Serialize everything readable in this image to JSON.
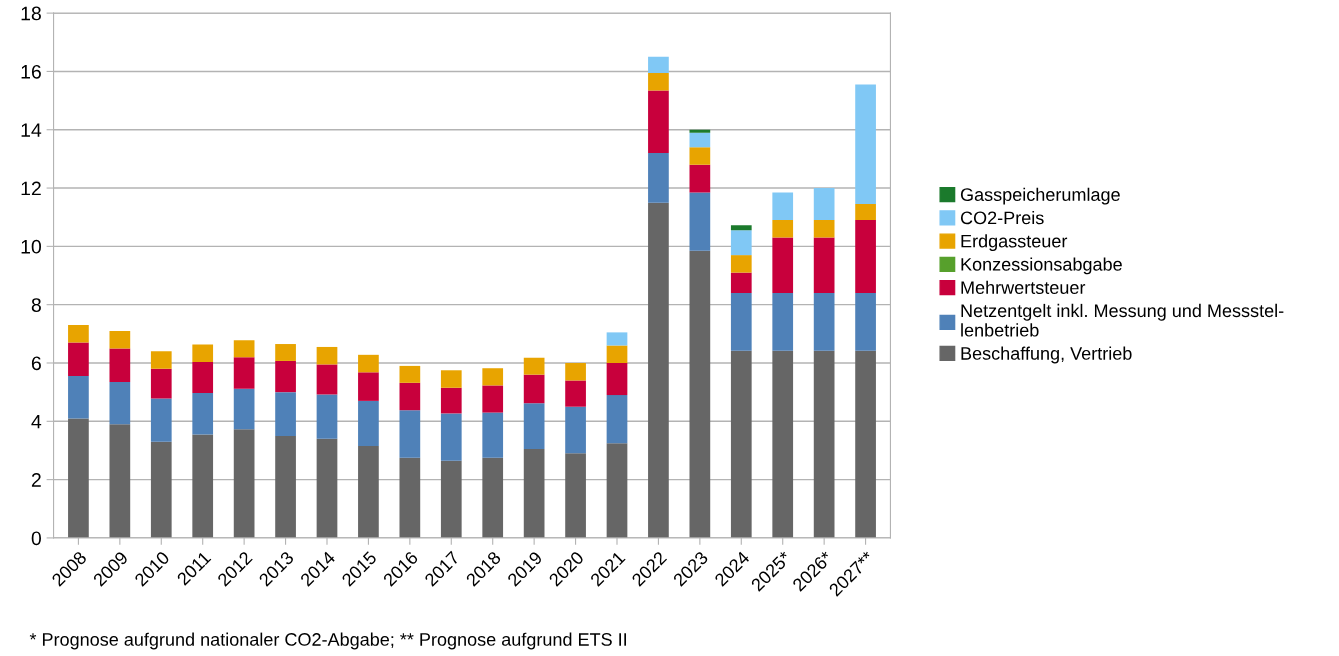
{
  "chart_data": {
    "type": "bar",
    "stacked": true,
    "categories": [
      "2008",
      "2009",
      "2010",
      "2011",
      "2012",
      "2013",
      "2014",
      "2015",
      "2016",
      "2017",
      "2018",
      "2019",
      "2020",
      "2021",
      "2022",
      "2023",
      "2024",
      "2025*",
      "2026*",
      "2027**"
    ],
    "series": [
      {
        "name": "Beschaffung, Vertrieb",
        "color": "#666666",
        "values": [
          4.1,
          3.9,
          3.3,
          3.55,
          3.73,
          3.5,
          3.4,
          3.15,
          2.75,
          2.65,
          2.75,
          3.05,
          2.9,
          3.25,
          11.5,
          9.85,
          6.42,
          6.42,
          6.42,
          6.42
        ]
      },
      {
        "name": "Netzentgelt inkl. Messung und Messstel-\nlenbetrieb",
        "color": "#4f81b8",
        "values": [
          1.45,
          1.45,
          1.48,
          1.42,
          1.39,
          1.5,
          1.52,
          1.55,
          1.63,
          1.62,
          1.55,
          1.57,
          1.6,
          1.65,
          1.7,
          2.0,
          1.98,
          1.98,
          1.98,
          1.98
        ]
      },
      {
        "name": "Mehrwertsteuer",
        "color": "#c8003c",
        "values": [
          1.15,
          1.15,
          1.02,
          1.06,
          1.08,
          1.07,
          1.03,
          0.98,
          0.94,
          0.88,
          0.93,
          0.98,
          0.9,
          1.1,
          2.15,
          0.95,
          0.7,
          1.9,
          1.9,
          2.5
        ]
      },
      {
        "name": "Konzessionsabgabe",
        "color": "#57a02c",
        "values": [
          null,
          null,
          null,
          null,
          null,
          null,
          null,
          null,
          null,
          null,
          null,
          null,
          null,
          null,
          null,
          null,
          null,
          null,
          null,
          null
        ]
      },
      {
        "name": "Erdgassteuer",
        "color": "#e8a400",
        "values": [
          0.6,
          0.6,
          0.6,
          0.6,
          0.58,
          0.58,
          0.6,
          0.6,
          0.58,
          0.6,
          0.59,
          0.58,
          0.6,
          0.6,
          0.6,
          0.6,
          0.6,
          0.6,
          0.6,
          0.55
        ]
      },
      {
        "name": "CO2-Preis",
        "color": "#80c8f5",
        "values": [
          null,
          null,
          null,
          null,
          null,
          null,
          null,
          null,
          null,
          null,
          null,
          null,
          null,
          0.45,
          0.55,
          0.5,
          0.85,
          0.95,
          1.1,
          4.1
        ]
      },
      {
        "name": "Gasspeicherumlage",
        "color": "#1b7a2c",
        "values": [
          null,
          null,
          null,
          null,
          null,
          null,
          null,
          null,
          null,
          null,
          null,
          null,
          null,
          null,
          null,
          0.1,
          0.17,
          null,
          null,
          null
        ]
      }
    ],
    "ylim": [
      0,
      18
    ],
    "yticks": [
      0,
      2,
      4,
      6,
      8,
      10,
      12,
      14,
      16,
      18
    ],
    "grid": "y",
    "legend": "right",
    "annotations": [
      "* Prognose aufgrund nationaler CO2-Abgabe; ** Prognose aufgrund ETS II"
    ]
  }
}
